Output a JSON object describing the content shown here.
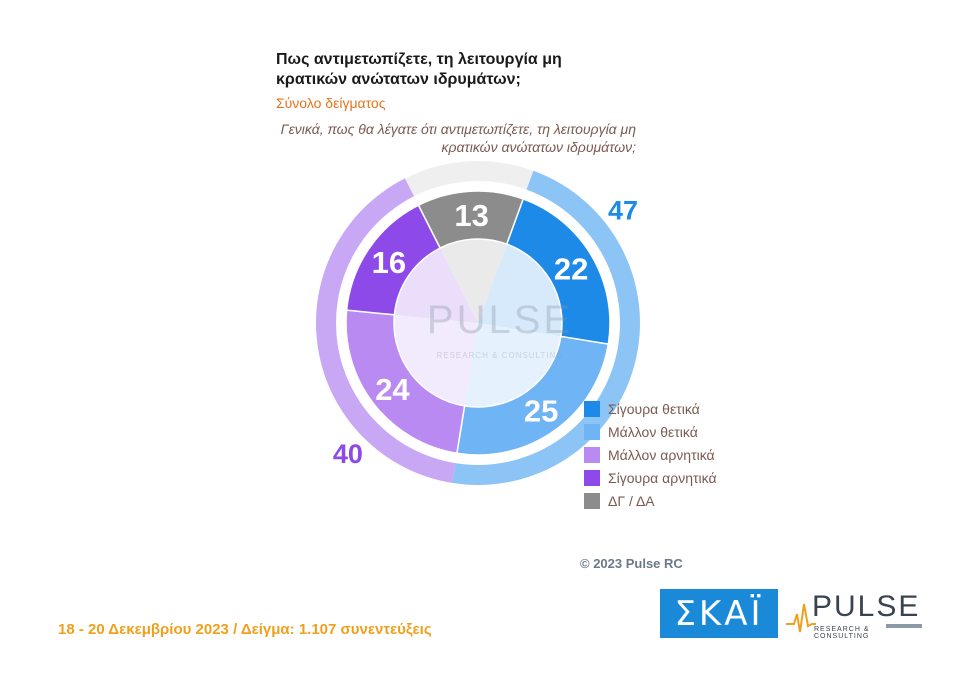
{
  "title": "Πως αντιμετωπίζετε, τη λειτουργία μη κρατικών ανώτατων ιδρυμάτων;",
  "subtitle": "Σύνολο δείγματος",
  "question": "Γενικά, πως θα λέγατε ότι αντιμετωπίζετε, τη λειτουργία μη κρατικών ανώτατων ιδρυμάτων;",
  "watermark": {
    "main": "PULSE",
    "sub": "RESEARCH & CONSULTING"
  },
  "chart_data": {
    "type": "pie",
    "categories": [
      "Σίγουρα θετικά",
      "Μάλλον θετικά",
      "Μάλλον αρνητικά",
      "Σίγουρα αρνητικά",
      "ΔΓ / ΔΑ"
    ],
    "values": [
      22,
      25,
      24,
      16,
      13
    ],
    "colors": [
      "#1e8ae8",
      "#6fb4f4",
      "#b98af2",
      "#8e4ae8",
      "#8c8c8c"
    ],
    "groups": [
      {
        "value": 47,
        "color": "#1e8ae8",
        "ring_color": "#8cc4f6"
      },
      {
        "value": 40,
        "color": "#8e4ae8",
        "ring_color": "#c8a8f4"
      }
    ],
    "legend_position": "right"
  },
  "copyright": "© 2023 Pulse RC",
  "footer": "18 - 20  Δεκεμβρίου  2023  /  Δείγμα:  1.107 συνεντεύξεις",
  "logos": {
    "skai": "ΣΚΑΪ",
    "pulse": "PULSE",
    "pulse_sub": "RESEARCH & CONSULTING"
  }
}
